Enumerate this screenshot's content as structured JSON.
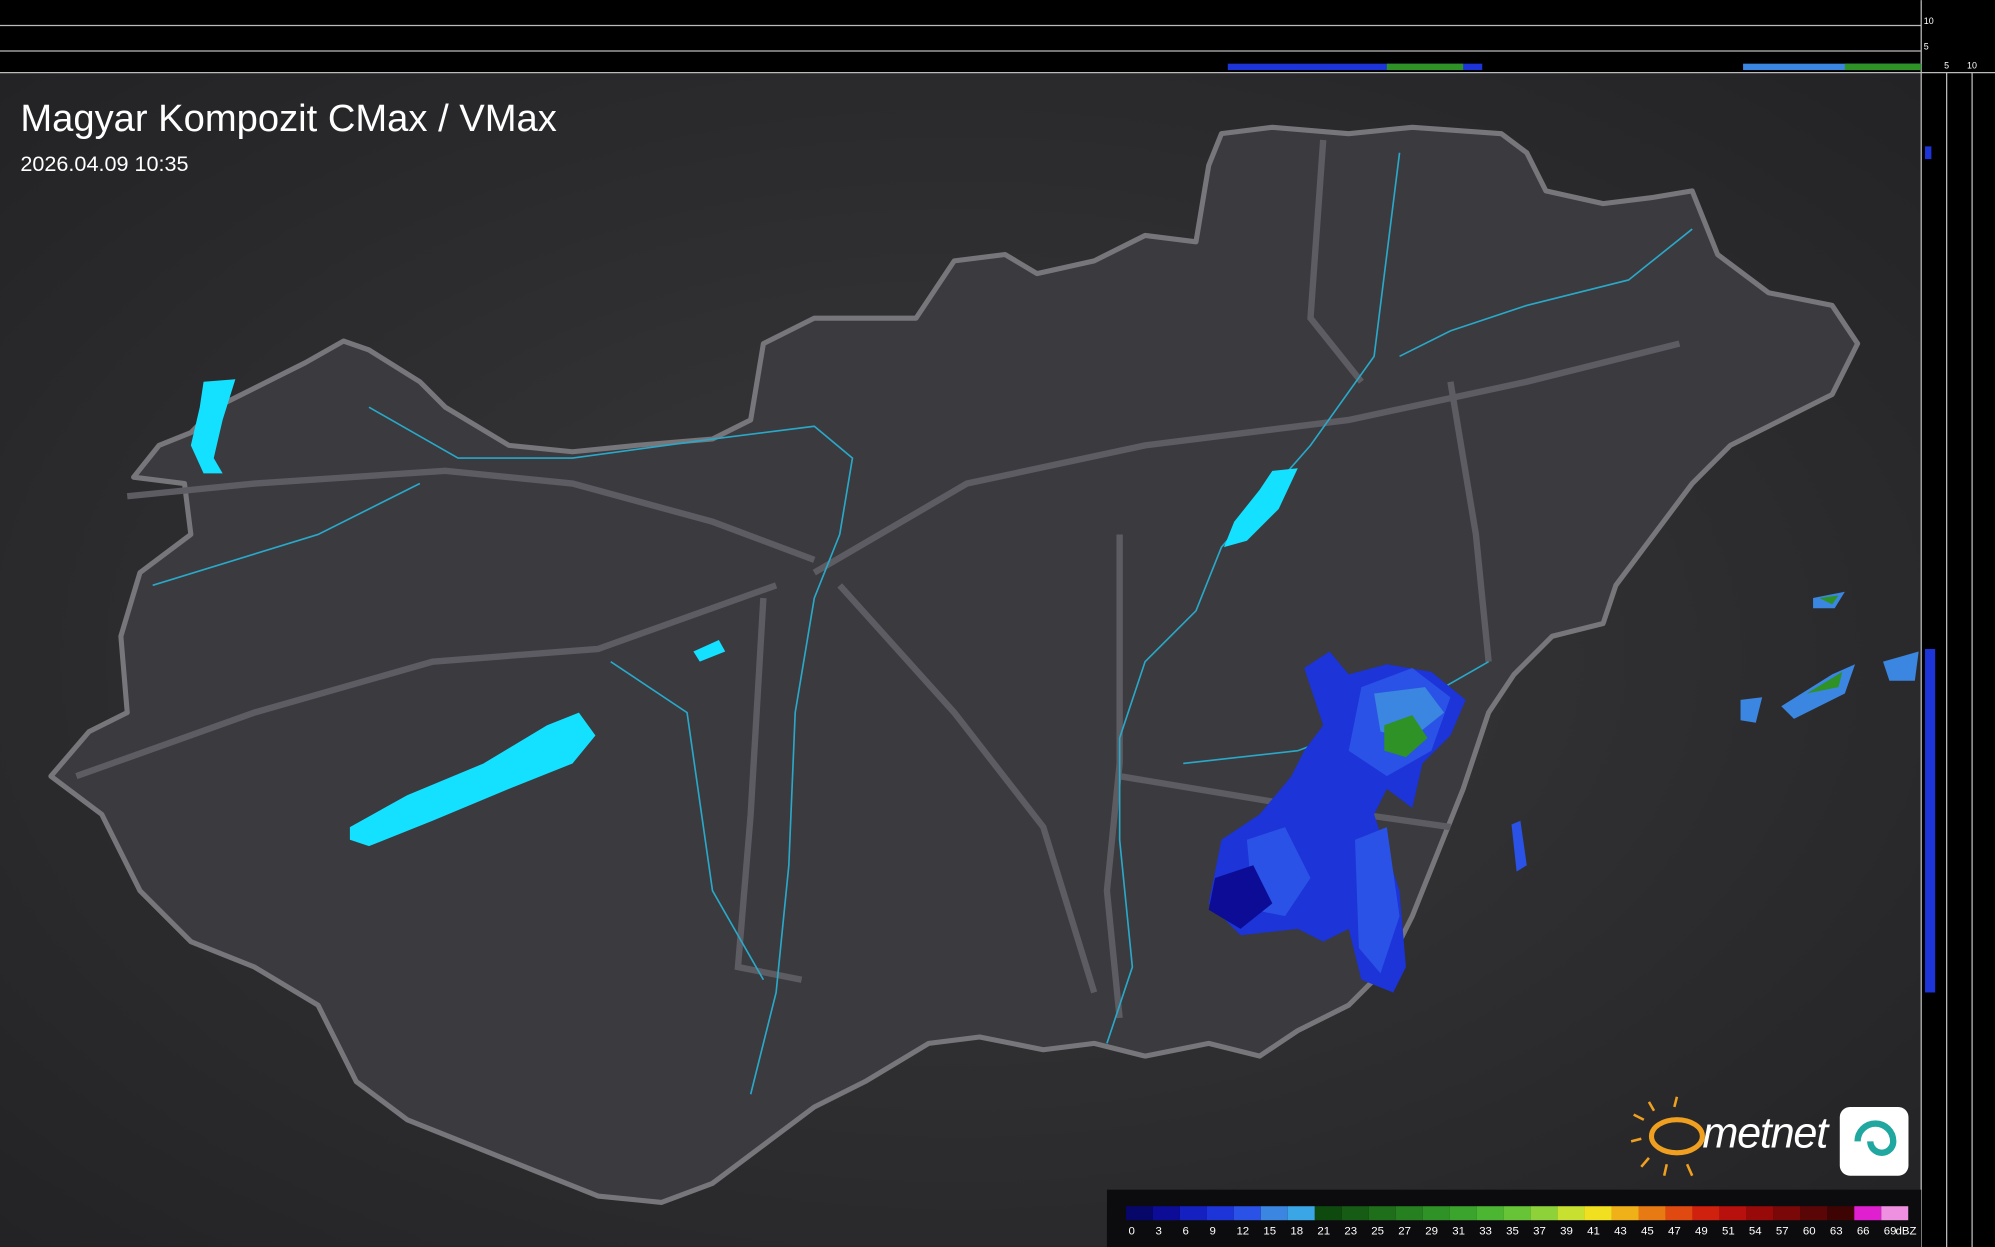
{
  "header": {
    "title": "Magyar Kompozit CMax / VMax",
    "timestamp": "2026.04.09 10:35"
  },
  "logo": {
    "text": "metnet"
  },
  "side_axis": {
    "top_ticks": [
      "10",
      "5"
    ],
    "right_ticks": [
      "5",
      "10"
    ]
  },
  "legend": {
    "unit": "dBZ",
    "steps": [
      {
        "label": "0",
        "color": "#07076a"
      },
      {
        "label": "3",
        "color": "#0c0c96"
      },
      {
        "label": "6",
        "color": "#1420c0"
      },
      {
        "label": "9",
        "color": "#1c34d8"
      },
      {
        "label": "12",
        "color": "#2a52e6"
      },
      {
        "label": "15",
        "color": "#3a86e0"
      },
      {
        "label": "18",
        "color": "#3aa6e6"
      },
      {
        "label": "21",
        "color": "#0e4a0e"
      },
      {
        "label": "23",
        "color": "#165c14"
      },
      {
        "label": "25",
        "color": "#1e6e1a"
      },
      {
        "label": "27",
        "color": "#268020"
      },
      {
        "label": "29",
        "color": "#2e9226"
      },
      {
        "label": "31",
        "color": "#3aa42c"
      },
      {
        "label": "33",
        "color": "#4cb632"
      },
      {
        "label": "35",
        "color": "#66c436"
      },
      {
        "label": "37",
        "color": "#8ed23a"
      },
      {
        "label": "39",
        "color": "#c8e030"
      },
      {
        "label": "41",
        "color": "#f0e020"
      },
      {
        "label": "43",
        "color": "#f0b018"
      },
      {
        "label": "45",
        "color": "#e87a14"
      },
      {
        "label": "47",
        "color": "#e04a10"
      },
      {
        "label": "49",
        "color": "#d0200e"
      },
      {
        "label": "51",
        "color": "#b8100c"
      },
      {
        "label": "54",
        "color": "#980a0a"
      },
      {
        "label": "57",
        "color": "#7a0808"
      },
      {
        "label": "60",
        "color": "#5a0606"
      },
      {
        "label": "63",
        "color": "#3e0404"
      },
      {
        "label": "66",
        "color": "#e020d0"
      },
      {
        "label": "69",
        "color": "#f090e0"
      }
    ]
  }
}
